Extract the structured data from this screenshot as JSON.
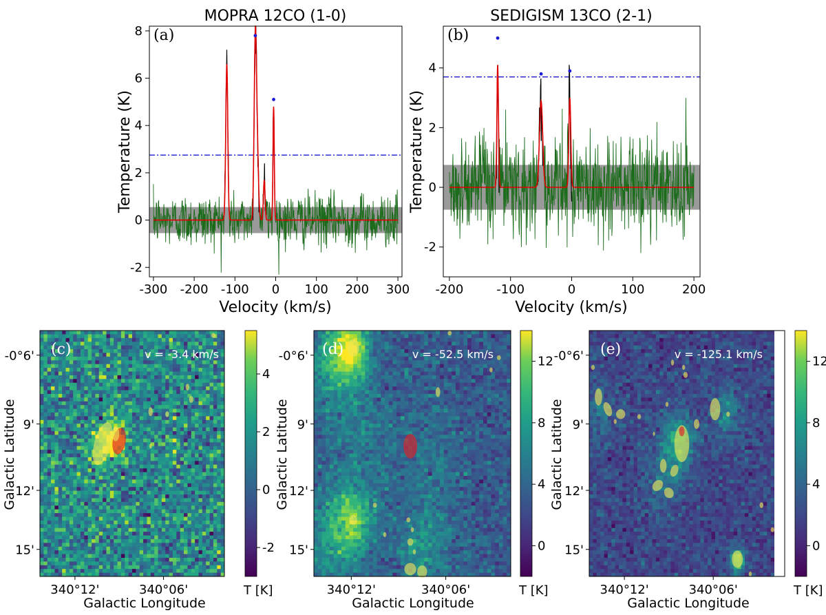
{
  "figure": {
    "width": 1200,
    "height": 893
  },
  "chart_data": [
    {
      "id": "a",
      "type": "line",
      "title": "MOPRA 12CO (1-0)",
      "panel_label": "(a)",
      "xlabel": "Velocity (km/s)",
      "ylabel": "Temperature (K)",
      "xlim": [
        -310,
        310
      ],
      "ylim": [
        -2.4,
        8.2
      ],
      "xticks": [
        -300,
        -200,
        -100,
        0,
        100,
        200,
        300
      ],
      "xtick_labels": [
        "-300",
        "-200",
        "-100",
        "0",
        "100",
        "200",
        "300"
      ],
      "yticks": [
        -2,
        0,
        2,
        4,
        6,
        8
      ],
      "ytick_labels": [
        "-2",
        "0",
        "2",
        "4",
        "6",
        "8"
      ],
      "noise_band": [
        -0.55,
        0.55
      ],
      "threshold": 2.75,
      "noise_sigma": 0.55,
      "noise_xrange": [
        -300,
        300
      ],
      "series": [
        {
          "name": "spectrum",
          "color": "#1a6b1a"
        },
        {
          "name": "gaussian fit",
          "color": "#e00000"
        }
      ],
      "components": [
        {
          "center": -120,
          "amp": 6.6,
          "sigma": 2.5
        },
        {
          "center": -50,
          "amp": 7.5,
          "sigma": 2.8
        },
        {
          "center": -45,
          "amp": 2.6,
          "sigma": 3.0
        },
        {
          "center": -28,
          "amp": 1.7,
          "sigma": 2.0
        },
        {
          "center": -5,
          "amp": 4.8,
          "sigma": 1.6
        }
      ],
      "peaks": [
        {
          "x": -50,
          "y": 7.8
        },
        {
          "x": -5,
          "y": 5.1
        }
      ]
    },
    {
      "id": "b",
      "type": "line",
      "title": "SEDIGISM 13CO (2-1)",
      "panel_label": "(b)",
      "xlabel": "Velocity (km/s)",
      "ylabel": "Temperature (K)",
      "xlim": [
        -210,
        210
      ],
      "ylim": [
        -3.0,
        5.4
      ],
      "xticks": [
        -200,
        -100,
        0,
        100,
        200
      ],
      "xtick_labels": [
        "-200",
        "-100",
        "0",
        "100",
        "200"
      ],
      "yticks": [
        -2,
        0,
        2,
        4
      ],
      "ytick_labels": [
        "-2",
        "0",
        "2",
        "4"
      ],
      "noise_band": [
        -0.75,
        0.75
      ],
      "threshold": 3.7,
      "noise_sigma": 0.85,
      "noise_xrange": [
        -200,
        200
      ],
      "series": [
        {
          "name": "spectrum",
          "color": "#1a6b1a"
        },
        {
          "name": "gaussian fit",
          "color": "#e00000"
        }
      ],
      "components": [
        {
          "center": -121,
          "amp": 4.1,
          "sigma": 1.3
        },
        {
          "center": -50,
          "amp": 2.9,
          "sigma": 2.6
        },
        {
          "center": -3,
          "amp": 3.0,
          "sigma": 1.6
        }
      ],
      "peaks": [
        {
          "x": -121,
          "y": 5.0
        },
        {
          "x": -50,
          "y": 3.8
        },
        {
          "x": -3,
          "y": 3.9
        }
      ]
    },
    {
      "id": "c",
      "type": "heatmap",
      "panel_label": "(c)",
      "velocity_label": "v = -3.4 km/s",
      "xlabel": "Galactic Longitude",
      "ylabel": "Galactic Latitude",
      "xtick_labels": [
        "340°12'",
        "340°06'"
      ],
      "ytick_labels": [
        "-0°6'",
        "9'",
        "12'",
        "15'"
      ],
      "colorbar_label": "T [K]",
      "vmin": -3.0,
      "vmax": 5.5,
      "colorbar_ticks": [
        -2,
        0,
        2,
        4
      ],
      "colorbar_tick_labels": [
        "-2",
        "0",
        "2",
        "4"
      ],
      "background_mean": 1.0,
      "noise": 1.4,
      "blobs": [
        {
          "u": 0.42,
          "v": 0.44,
          "amp": 4.5,
          "s": 0.04
        },
        {
          "u": 0.35,
          "v": 0.46,
          "amp": 3.0,
          "s": 0.05
        }
      ],
      "clumps": [
        {
          "u": 0.34,
          "v": 0.46,
          "rx": 0.045,
          "ry": 0.09,
          "rot": 15,
          "red": false
        },
        {
          "u": 0.43,
          "v": 0.45,
          "rx": 0.035,
          "ry": 0.055,
          "rot": 10,
          "red": true
        },
        {
          "u": 0.41,
          "v": 0.42,
          "rx": 0.02,
          "ry": 0.03,
          "rot": 0,
          "red": false
        },
        {
          "u": 0.6,
          "v": 0.33,
          "rx": 0.012,
          "ry": 0.018,
          "rot": 0,
          "red": false
        },
        {
          "u": 0.69,
          "v": 0.34,
          "rx": 0.01,
          "ry": 0.012,
          "rot": 0,
          "red": false
        },
        {
          "u": 0.8,
          "v": 0.23,
          "rx": 0.01,
          "ry": 0.014,
          "rot": 0,
          "red": false
        },
        {
          "u": 0.82,
          "v": 0.28,
          "rx": 0.012,
          "ry": 0.014,
          "rot": 0,
          "red": false
        },
        {
          "u": 0.6,
          "v": 0.47,
          "rx": 0.008,
          "ry": 0.01,
          "rot": 0,
          "red": false
        },
        {
          "u": 0.94,
          "v": 0.02,
          "rx": 0.012,
          "ry": 0.01,
          "rot": 0,
          "red": false
        }
      ]
    },
    {
      "id": "d",
      "type": "heatmap",
      "panel_label": "(d)",
      "velocity_label": "v = -52.5 km/s",
      "xlabel": "Galactic Longitude",
      "ylabel": "Galactic Latitude",
      "xtick_labels": [
        "340°12'",
        "340°06'"
      ],
      "ytick_labels": [
        "-0°6'",
        "9'",
        "12'",
        "15'"
      ],
      "colorbar_label": "T [K]",
      "vmin": -2.0,
      "vmax": 14.0,
      "colorbar_ticks": [
        0,
        4,
        8,
        12
      ],
      "colorbar_tick_labels": [
        "0",
        "4",
        "8",
        "12"
      ],
      "background_mean": 2.5,
      "noise": 1.2,
      "blobs": [
        {
          "u": 0.19,
          "v": 0.07,
          "amp": 9.0,
          "s": 0.06
        },
        {
          "u": 0.1,
          "v": 0.12,
          "amp": 4.5,
          "s": 0.09
        },
        {
          "u": 0.2,
          "v": 0.77,
          "amp": 6.0,
          "s": 0.07
        },
        {
          "u": 0.1,
          "v": 0.85,
          "amp": 4.0,
          "s": 0.1
        },
        {
          "u": 0.55,
          "v": 0.9,
          "amp": 3.5,
          "s": 0.09
        },
        {
          "u": 0.22,
          "v": 0.4,
          "amp": 2.0,
          "s": 0.15
        },
        {
          "u": 0.6,
          "v": 0.55,
          "amp": 1.5,
          "s": 0.12
        }
      ],
      "clumps": [
        {
          "u": 0.2,
          "v": 0.07,
          "rx": 0.03,
          "ry": 0.035,
          "rot": 0,
          "red": false
        },
        {
          "u": 0.49,
          "v": 0.47,
          "rx": 0.035,
          "ry": 0.05,
          "rot": 0,
          "red": true
        },
        {
          "u": 0.63,
          "v": 0.25,
          "rx": 0.012,
          "ry": 0.02,
          "rot": 0,
          "red": false
        },
        {
          "u": 0.69,
          "v": 0.01,
          "rx": 0.01,
          "ry": 0.01,
          "rot": 0,
          "red": false
        },
        {
          "u": 0.94,
          "v": 0.11,
          "rx": 0.01,
          "ry": 0.01,
          "rot": 0,
          "red": false
        },
        {
          "u": 0.9,
          "v": 0.16,
          "rx": 0.008,
          "ry": 0.01,
          "rot": 0,
          "red": false
        },
        {
          "u": 0.2,
          "v": 0.77,
          "rx": 0.02,
          "ry": 0.02,
          "rot": 0,
          "red": false
        },
        {
          "u": 0.31,
          "v": 0.71,
          "rx": 0.01,
          "ry": 0.01,
          "rot": 0,
          "red": false
        },
        {
          "u": 0.36,
          "v": 0.83,
          "rx": 0.008,
          "ry": 0.01,
          "rot": 0,
          "red": false
        },
        {
          "u": 0.48,
          "v": 0.77,
          "rx": 0.01,
          "ry": 0.01,
          "rot": 0,
          "red": false
        },
        {
          "u": 0.5,
          "v": 0.81,
          "rx": 0.008,
          "ry": 0.01,
          "rot": 0,
          "red": false
        },
        {
          "u": 0.49,
          "v": 0.86,
          "rx": 0.015,
          "ry": 0.015,
          "rot": 0,
          "red": false
        },
        {
          "u": 0.51,
          "v": 0.9,
          "rx": 0.008,
          "ry": 0.01,
          "rot": 0,
          "red": false
        },
        {
          "u": 0.49,
          "v": 0.97,
          "rx": 0.03,
          "ry": 0.025,
          "rot": 0,
          "red": false
        },
        {
          "u": 0.55,
          "v": 0.98,
          "rx": 0.025,
          "ry": 0.025,
          "rot": 0,
          "red": false
        }
      ]
    },
    {
      "id": "e",
      "type": "heatmap",
      "panel_label": "(e)",
      "velocity_label": "v = -125.1 km/s",
      "xlabel": "Galactic Longitude",
      "ylabel": "Galactic Latitude",
      "xtick_labels": [
        "340°12'",
        "340°06'"
      ],
      "ytick_labels": [
        "-0°6'",
        "9'",
        "12'",
        "15'"
      ],
      "colorbar_label": "T [K]",
      "vmin": -2.0,
      "vmax": 14.0,
      "colorbar_ticks": [
        0,
        4,
        8,
        12
      ],
      "colorbar_tick_labels": [
        "0",
        "4",
        "8",
        "12"
      ],
      "background_mean": 1.5,
      "noise": 1.0,
      "blobs": [
        {
          "u": 0.48,
          "v": 0.45,
          "amp": 6.0,
          "s": 0.06
        },
        {
          "u": 0.74,
          "v": 0.33,
          "amp": 4.0,
          "s": 0.05
        },
        {
          "u": 0.8,
          "v": 0.93,
          "amp": 10.0,
          "s": 0.025
        },
        {
          "u": 0.06,
          "v": 0.33,
          "amp": 2.5,
          "s": 0.06
        },
        {
          "u": 0.4,
          "v": 0.6,
          "amp": 2.5,
          "s": 0.07
        }
      ],
      "clumps": [
        {
          "u": 0.5,
          "v": 0.46,
          "rx": 0.04,
          "ry": 0.075,
          "rot": 0,
          "red": false
        },
        {
          "u": 0.5,
          "v": 0.41,
          "rx": 0.015,
          "ry": 0.02,
          "rot": 0,
          "red": true
        },
        {
          "u": 0.58,
          "v": 0.38,
          "rx": 0.015,
          "ry": 0.02,
          "rot": 0,
          "red": false
        },
        {
          "u": 0.68,
          "v": 0.32,
          "rx": 0.028,
          "ry": 0.045,
          "rot": 0,
          "red": false
        },
        {
          "u": 0.05,
          "v": 0.27,
          "rx": 0.02,
          "ry": 0.035,
          "rot": 0,
          "red": false
        },
        {
          "u": 0.1,
          "v": 0.32,
          "rx": 0.02,
          "ry": 0.03,
          "rot": -20,
          "red": false
        },
        {
          "u": 0.17,
          "v": 0.34,
          "rx": 0.025,
          "ry": 0.02,
          "rot": 0,
          "red": false
        },
        {
          "u": 0.02,
          "v": 0.15,
          "rx": 0.01,
          "ry": 0.01,
          "rot": 0,
          "red": false
        },
        {
          "u": 0.14,
          "v": 0.37,
          "rx": 0.008,
          "ry": 0.01,
          "rot": 0,
          "red": false
        },
        {
          "u": 0.27,
          "v": 0.35,
          "rx": 0.01,
          "ry": 0.01,
          "rot": 0,
          "red": false
        },
        {
          "u": 0.42,
          "v": 0.3,
          "rx": 0.008,
          "ry": 0.01,
          "rot": 0,
          "red": false
        },
        {
          "u": 0.35,
          "v": 0.42,
          "rx": 0.006,
          "ry": 0.008,
          "rot": 0,
          "red": false
        },
        {
          "u": 0.45,
          "v": 0.13,
          "rx": 0.008,
          "ry": 0.012,
          "rot": 0,
          "red": false
        },
        {
          "u": 0.51,
          "v": 0.15,
          "rx": 0.008,
          "ry": 0.01,
          "rot": 0,
          "red": false
        },
        {
          "u": 0.52,
          "v": 0.18,
          "rx": 0.012,
          "ry": 0.012,
          "rot": 0,
          "red": false
        },
        {
          "u": 0.75,
          "v": 0.34,
          "rx": 0.01,
          "ry": 0.01,
          "rot": 0,
          "red": false
        },
        {
          "u": 0.4,
          "v": 0.55,
          "rx": 0.018,
          "ry": 0.028,
          "rot": 0,
          "red": false
        },
        {
          "u": 0.46,
          "v": 0.57,
          "rx": 0.02,
          "ry": 0.025,
          "rot": 20,
          "red": false
        },
        {
          "u": 0.37,
          "v": 0.63,
          "rx": 0.025,
          "ry": 0.025,
          "rot": 40,
          "red": false
        },
        {
          "u": 0.43,
          "v": 0.66,
          "rx": 0.025,
          "ry": 0.022,
          "rot": -30,
          "red": false
        },
        {
          "u": 0.8,
          "v": 0.93,
          "rx": 0.03,
          "ry": 0.035,
          "rot": 0,
          "red": false
        },
        {
          "u": 0.93,
          "v": 0.71,
          "rx": 0.01,
          "ry": 0.012,
          "rot": 0,
          "red": false
        },
        {
          "u": 0.99,
          "v": 0.81,
          "rx": 0.01,
          "ry": 0.01,
          "rot": 0,
          "red": false
        },
        {
          "u": 0.87,
          "v": 0.99,
          "rx": 0.008,
          "ry": 0.01,
          "rot": 0,
          "red": false
        }
      ]
    }
  ]
}
